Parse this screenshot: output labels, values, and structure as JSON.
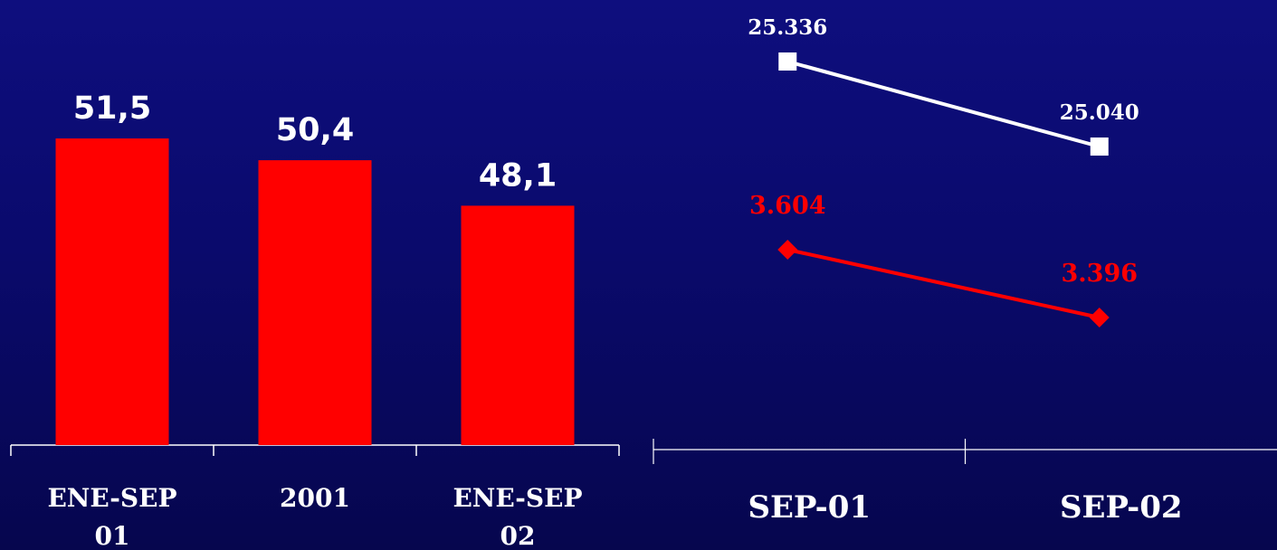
{
  "chart_data": [
    {
      "type": "bar",
      "categories": [
        [
          "ENE-SEP",
          "01"
        ],
        [
          "2001"
        ],
        [
          "ENE-SEP",
          "02"
        ]
      ],
      "values": [
        51.5,
        50.4,
        48.1
      ],
      "value_labels": [
        "51,5",
        "50,4",
        "48,1"
      ],
      "ylim": [
        36,
        58.5
      ],
      "grid": false,
      "colors": {
        "bar": "#ff0000",
        "label": "#ffffff",
        "axis": "#ffffff"
      }
    },
    {
      "type": "line",
      "categories": [
        "SEP-01",
        "SEP-02"
      ],
      "series": [
        {
          "values": [
            25336,
            25040
          ],
          "labels": [
            "25.336",
            "25.040"
          ],
          "color": "#ffffff",
          "marker": "square"
        },
        {
          "values": [
            3604,
            3396
          ],
          "labels": [
            "3.604",
            "3.396"
          ],
          "color": "#ff0000",
          "marker": "diamond"
        }
      ],
      "grid": false
    }
  ]
}
